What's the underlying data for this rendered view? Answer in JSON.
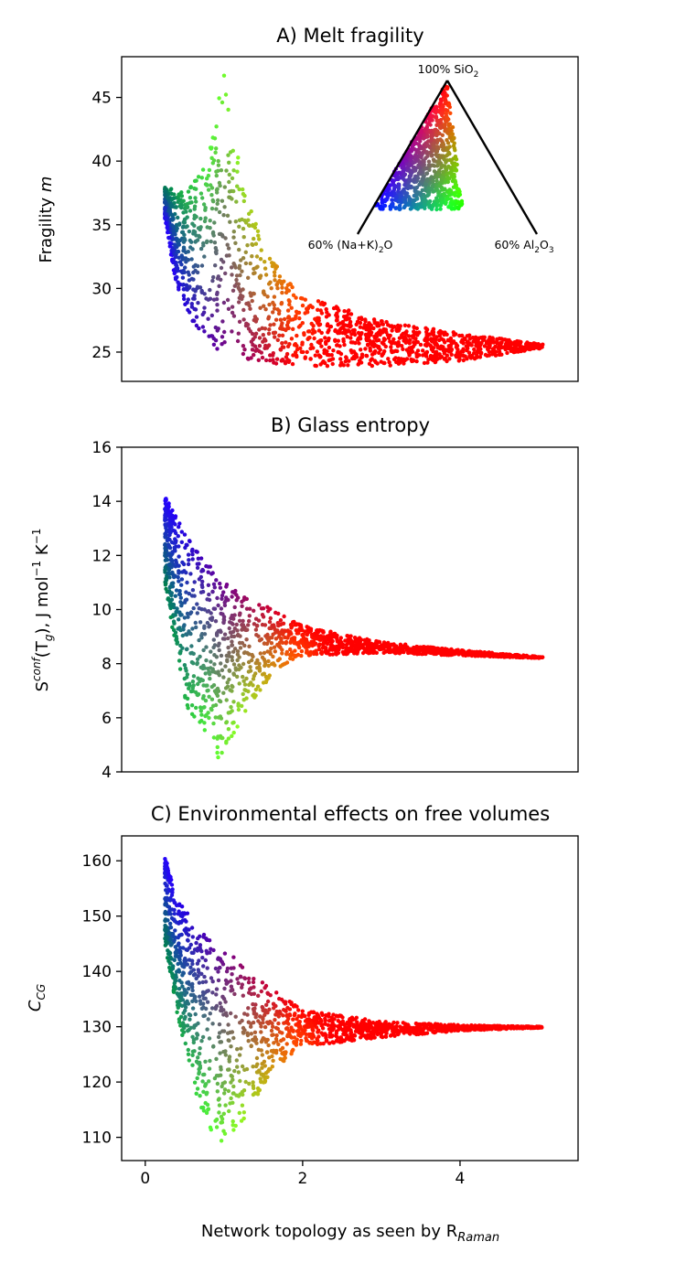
{
  "figure": {
    "xlabel": "Network topology as seen by R",
    "xlabel_sub": "Raman",
    "shared_x_ticks": [
      "0",
      "2",
      "4"
    ]
  },
  "colors": {
    "silica_rich": "#ff0000",
    "alkali_rich": "#0000ff",
    "alumina_rich": "#00ff66",
    "axes": "#000000"
  },
  "chart_data": [
    {
      "type": "scatter",
      "title": "A) Melt fragility",
      "ylabel": "Fragility m",
      "ylabel_prefix": "Fragility ",
      "ylabel_var": "m",
      "xlim": [
        -0.3,
        5.5
      ],
      "ylim": [
        22.7,
        48.2
      ],
      "x_ticks": [
        0,
        2,
        4
      ],
      "y_ticks": [
        "25",
        "30",
        "35",
        "40",
        "45"
      ],
      "y_tick_values": [
        25,
        30,
        35,
        40,
        45
      ],
      "points_note_x_range": [
        0.25,
        5.05
      ],
      "envelope": {
        "lower": [
          [
            0.25,
            35.5
          ],
          [
            0.4,
            30
          ],
          [
            0.6,
            27.2
          ],
          [
            0.9,
            25.2
          ],
          [
            1.3,
            24.3
          ],
          [
            2,
            23.9
          ],
          [
            3,
            23.9
          ],
          [
            4,
            24.3
          ],
          [
            5.05,
            25.3
          ]
        ],
        "upper": [
          [
            0.25,
            38
          ],
          [
            0.5,
            37.5
          ],
          [
            0.8,
            40.5
          ],
          [
            1,
            47
          ],
          [
            1.2,
            40
          ],
          [
            1.5,
            33
          ],
          [
            2,
            29.5
          ],
          [
            3,
            27.5
          ],
          [
            4,
            26.5
          ],
          [
            5.05,
            25.6
          ]
        ]
      },
      "inset_ternary": {
        "labels": {
          "top": "100% SiO",
          "top_sub": "2",
          "left": "60% (Na+K)",
          "left_sub": "2",
          "left_tail": "O",
          "right": "60% Al",
          "right_sub1": "2",
          "right_mid": "O",
          "right_sub2": "3"
        }
      }
    },
    {
      "type": "scatter",
      "title": "B) Glass entropy",
      "ylabel_main": "S",
      "ylabel_sup": "conf",
      "ylabel_mid": "(T",
      "ylabel_sub": "g",
      "ylabel_rest": "), J mol",
      "ylabel_sup2": "−1",
      "ylabel_k": " K",
      "ylabel_sup3": "−1",
      "xlim": [
        -0.3,
        5.5
      ],
      "ylim": [
        4,
        16
      ],
      "y_ticks": [
        "4",
        "6",
        "8",
        "10",
        "12",
        "14",
        "16"
      ],
      "y_tick_values": [
        4,
        6,
        8,
        10,
        12,
        14,
        16
      ],
      "envelope": {
        "lower": [
          [
            0.25,
            11
          ],
          [
            0.5,
            6.5
          ],
          [
            0.8,
            5.2
          ],
          [
            0.97,
            4.3
          ],
          [
            1.2,
            5.8
          ],
          [
            1.6,
            7.6
          ],
          [
            2,
            8.3
          ],
          [
            3,
            8.4
          ],
          [
            4,
            8.3
          ],
          [
            5.05,
            8.2
          ]
        ],
        "upper": [
          [
            0.25,
            14.2
          ],
          [
            0.45,
            13.1
          ],
          [
            0.7,
            12
          ],
          [
            1,
            11
          ],
          [
            1.5,
            10.2
          ],
          [
            2,
            9.4
          ],
          [
            3,
            8.8
          ],
          [
            4,
            8.5
          ],
          [
            5.05,
            8.25
          ]
        ]
      }
    },
    {
      "type": "scatter",
      "title": "C) Environmental effects on free volumes",
      "ylabel_main": "C",
      "ylabel_sub": "CG",
      "xlim": [
        -0.3,
        5.5
      ],
      "ylim": [
        105.8,
        164.5
      ],
      "y_ticks": [
        "110",
        "120",
        "130",
        "140",
        "150",
        "160"
      ],
      "y_tick_values": [
        110,
        120,
        130,
        140,
        150,
        160
      ],
      "envelope": {
        "lower": [
          [
            0.25,
            145
          ],
          [
            0.5,
            125
          ],
          [
            0.7,
            115
          ],
          [
            0.95,
            108.3
          ],
          [
            1.2,
            112
          ],
          [
            1.6,
            122
          ],
          [
            2,
            126.5
          ],
          [
            3,
            128
          ],
          [
            4,
            129.3
          ],
          [
            5.05,
            129.8
          ]
        ],
        "upper": [
          [
            0.25,
            161
          ],
          [
            0.4,
            153
          ],
          [
            0.8,
            146
          ],
          [
            1.2,
            142
          ],
          [
            1.6,
            137
          ],
          [
            2,
            133
          ],
          [
            3,
            131
          ],
          [
            4,
            130.3
          ],
          [
            5.05,
            130
          ]
        ]
      }
    }
  ]
}
